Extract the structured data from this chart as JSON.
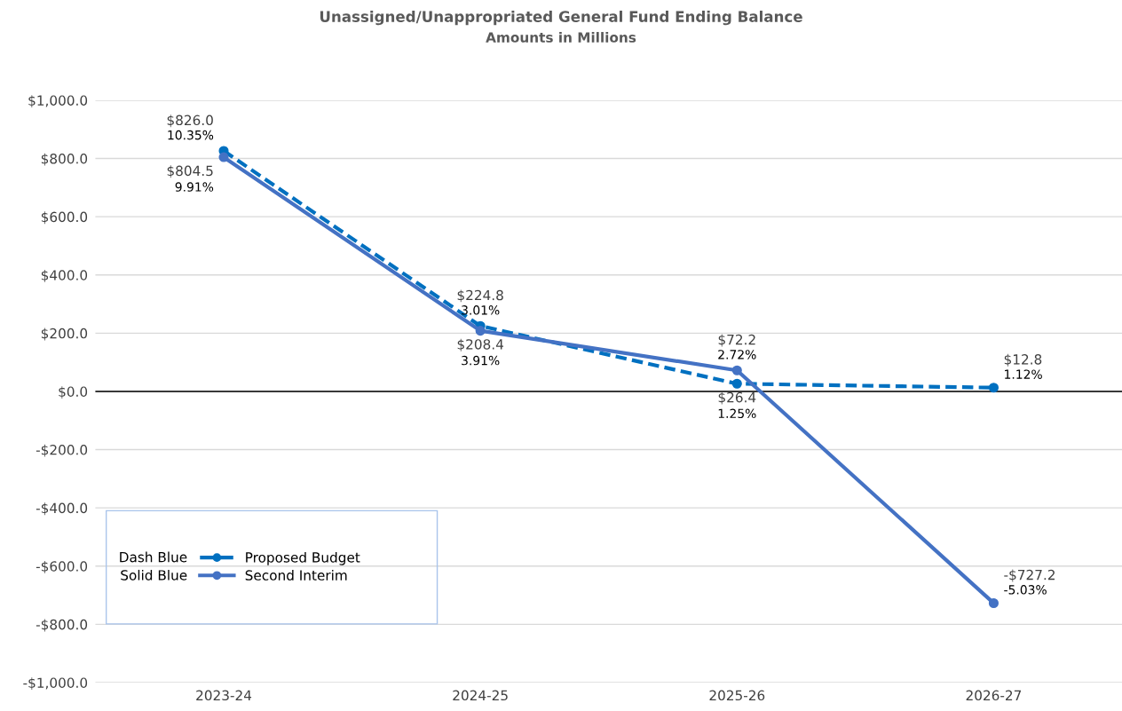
{
  "chart_data": {
    "type": "line",
    "title": "Unassigned/Unappropriated General Fund Ending Balance",
    "subtitle": "Amounts in Millions",
    "categories": [
      "2023-24",
      "2024-25",
      "2025-26",
      "2026-27"
    ],
    "series": [
      {
        "name": "Proposed Budget",
        "color": "#0070c0",
        "line_style": "dashed",
        "values": [
          826.0,
          224.8,
          26.4,
          12.8
        ],
        "value_labels": [
          "$826.0",
          "$224.8",
          "$26.4",
          "$12.8"
        ]
      },
      {
        "name": "Second Interim",
        "color": "#4472c4",
        "line_style": "solid",
        "values": [
          804.5,
          208.4,
          72.2,
          -727.2
        ],
        "value_labels": [
          "$804.5",
          "$208.4",
          "$72.2",
          "-$727.2"
        ]
      }
    ],
    "ylim": [
      -1000,
      1000
    ],
    "yticks": [
      {
        "value": -1000,
        "label": "-$1,000.0"
      },
      {
        "value": -800,
        "label": "-$800.0"
      },
      {
        "value": -600,
        "label": "-$600.0"
      },
      {
        "value": -400,
        "label": "-$400.0"
      },
      {
        "value": -200,
        "label": "-$200.0"
      },
      {
        "value": 0,
        "label": "$0.0"
      },
      {
        "value": 200,
        "label": "$200.0"
      },
      {
        "value": 400,
        "label": "$400.0"
      },
      {
        "value": 600,
        "label": "$600.0"
      },
      {
        "value": 800,
        "label": "$800.0"
      },
      {
        "value": 1000,
        "label": "$1,000.0"
      }
    ],
    "ref_lines": [
      {
        "axis": "y",
        "value": 0,
        "color": "#000000"
      }
    ],
    "grid": "y",
    "legend": "bottom left",
    "marker": "circle",
    "annotations": [
      "Dash Blue",
      "Solid Blue",
      {
        "text": "10.35%",
        "x": "2023-24",
        "y": 826.0
      },
      {
        "text": "3.01%",
        "x": "2024-25",
        "y": 224.8
      },
      {
        "text": "1.25%",
        "x": "2025-26",
        "y": 26.4
      },
      {
        "text": "1.12%",
        "x": "2026-27",
        "y": 12.8
      },
      {
        "text": "9.91%",
        "x": "2023-24",
        "y": 804.5
      },
      {
        "text": "3.91%",
        "x": "2024-25",
        "y": 208.4
      },
      {
        "text": "2.72%",
        "x": "2025-26",
        "y": 72.2
      },
      {
        "text": "-5.03%",
        "x": "2026-27",
        "y": -727.2
      }
    ]
  }
}
